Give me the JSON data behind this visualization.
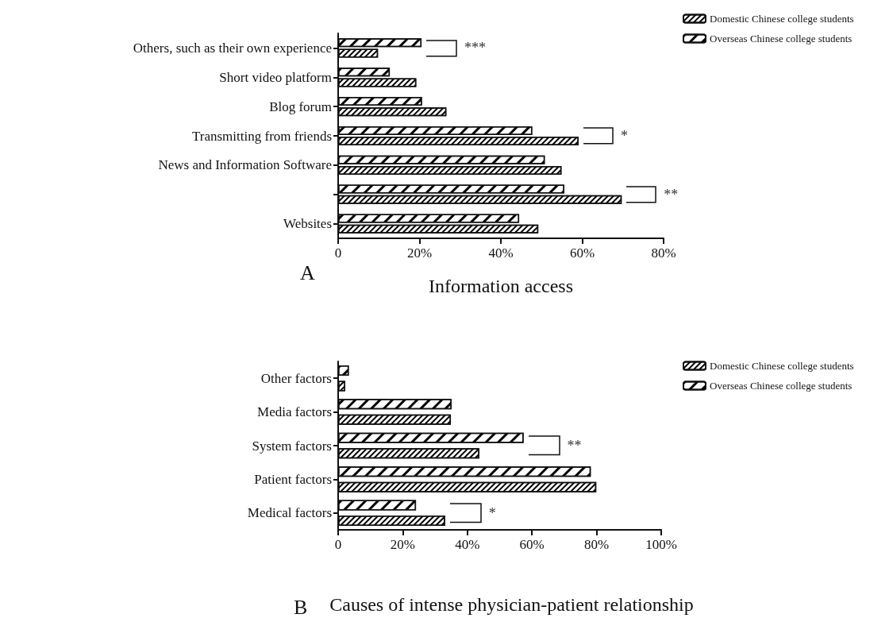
{
  "chart_data": [
    {
      "type": "bar",
      "orientation": "horizontal",
      "xlabel": "Information access",
      "categories": [
        "Others, such as their own experience",
        "Short video platform",
        "Blog forum",
        "Transmitting from friends",
        "News and Information Software",
        null,
        "Websites"
      ],
      "series": [
        {
          "name": "Overseas Chinese college students",
          "color": "#ffffff",
          "values": [
            20.5,
            12.7,
            20.6,
            47.7,
            50.8,
            55.6,
            44.5
          ]
        },
        {
          "name": "Domestic Chinese college students",
          "color": "#ffffff",
          "values": [
            9.8,
            19.2,
            26.6,
            59.1,
            54.9,
            69.7,
            49.2
          ]
        }
      ],
      "xlim": [
        0,
        80
      ],
      "xticks": [
        0,
        {
          "value": 20,
          "label": "20%"
        },
        {
          "value": 40,
          "label": "40%"
        },
        {
          "value": 60,
          "label": "60%"
        },
        {
          "value": 80,
          "label": "80%"
        }
      ],
      "legend": "top right",
      "grid": false,
      "annotations": [
        "A",
        "***",
        "*",
        "**"
      ]
    },
    {
      "type": "bar",
      "orientation": "horizontal",
      "xlabel": "Causes of intense physician-patient relationship",
      "categories": [
        "Other factors",
        "Media factors",
        "System factors",
        "Patient factors",
        "Medical factors"
      ],
      "series": [
        {
          "name": "Overseas Chinese college students",
          "color": "#ffffff",
          "values": [
            3.3,
            35.1,
            57.4,
            78.2,
            24.1
          ]
        },
        {
          "name": "Domestic Chinese college students",
          "color": "#ffffff",
          "values": [
            2.2,
            34.9,
            43.7,
            79.9,
            33.1
          ]
        }
      ],
      "xlim": [
        0,
        100
      ],
      "xticks": [
        0,
        {
          "value": 20,
          "label": "20%"
        },
        {
          "value": 40,
          "label": "40%"
        },
        {
          "value": 60,
          "label": "60%"
        },
        {
          "value": 80,
          "label": "80%"
        },
        {
          "value": 100,
          "label": "100%"
        }
      ],
      "legend": "top right",
      "grid": false,
      "annotations": [
        "B",
        "**",
        "*"
      ]
    }
  ]
}
